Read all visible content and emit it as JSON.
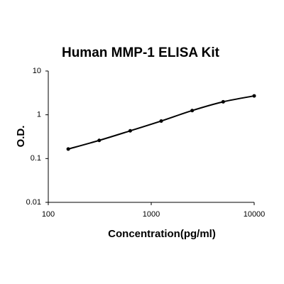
{
  "chart_data": {
    "type": "line",
    "title": "Human MMP-1 ELISA Kit",
    "x_label": "Concentration(pg/ml)",
    "y_label": "O.D.",
    "x": [
      156.25,
      312.5,
      625,
      1250,
      2500,
      5000,
      10000
    ],
    "series": [
      {
        "color": "#000000",
        "values": [
          0.165,
          0.26,
          0.43,
          0.72,
          1.25,
          1.98,
          2.7
        ]
      }
    ],
    "xlim": [
      100,
      10000
    ],
    "xticks": [
      100,
      1000,
      10000
    ],
    "ylim": [
      0.01,
      10
    ],
    "yticks": [
      0.01,
      0.1,
      1,
      10
    ],
    "xscale": "log",
    "yscale": "log",
    "grid": false
  }
}
